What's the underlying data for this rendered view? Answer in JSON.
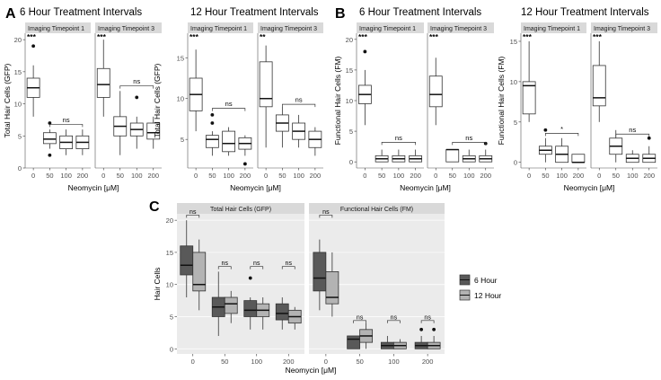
{
  "colors": {
    "strip_bg": "#d9d9d9",
    "box_white": "#ffffff",
    "box_6h": "#595959",
    "box_12h": "#b3b3b3",
    "grid_bg": "#ebebeb",
    "grid_line": "#ffffff",
    "axis_text": "#4d4d4d"
  },
  "panel_letters": [
    "A",
    "B",
    "C"
  ],
  "chart_data": [
    {
      "id": "A1",
      "type": "box",
      "title": "6 Hour Treatment Intervals",
      "xlabel": "Neomycin [μM]",
      "ylabel": "Total Hair Cells (GFP)",
      "ylim": [
        0,
        21
      ],
      "yticks": [
        0,
        5,
        10,
        15,
        20
      ],
      "categories": [
        "0",
        "50",
        "100",
        "200"
      ],
      "facets": [
        {
          "label": "Imaging Timepoint 1",
          "boxes": [
            {
              "min": 8,
              "q1": 11,
              "median": 12.5,
              "q3": 14,
              "max": 16,
              "outliers": [
                19
              ]
            },
            {
              "min": 3,
              "q1": 3.8,
              "median": 4.5,
              "q3": 5.5,
              "max": 6,
              "outliers": [
                7,
                2
              ]
            },
            {
              "min": 2,
              "q1": 3,
              "median": 4,
              "q3": 5,
              "max": 6,
              "outliers": []
            },
            {
              "min": 2,
              "q1": 3,
              "median": 4,
              "q3": 5,
              "max": 6,
              "outliers": []
            }
          ],
          "annotations": [
            {
              "text": "***",
              "cat": 0
            },
            {
              "text": "ns",
              "from": 1,
              "to": 3,
              "y": 6.8
            }
          ]
        },
        {
          "label": "Imaging Timepoint 3",
          "boxes": [
            {
              "min": 8,
              "q1": 11,
              "median": 13,
              "q3": 15.5,
              "max": 20,
              "outliers": []
            },
            {
              "min": 2,
              "q1": 5,
              "median": 6.5,
              "q3": 8,
              "max": 12,
              "outliers": []
            },
            {
              "min": 3,
              "q1": 5,
              "median": 6,
              "q3": 7,
              "max": 8,
              "outliers": [
                11
              ]
            },
            {
              "min": 3,
              "q1": 4.5,
              "median": 5.5,
              "q3": 7,
              "max": 8,
              "outliers": []
            }
          ],
          "annotations": [
            {
              "text": "***",
              "cat": 0
            },
            {
              "text": "ns",
              "from": 1,
              "to": 3,
              "y": 12.8
            }
          ]
        }
      ]
    },
    {
      "id": "A2",
      "type": "box",
      "title": "12 Hour Treatment Intervals",
      "xlabel": "Neomycin [μM]",
      "ylabel": "Total Hair Cells (GFP)",
      "ylim": [
        1.5,
        18
      ],
      "yticks": [
        5,
        10,
        15
      ],
      "categories": [
        "0",
        "50",
        "100",
        "200"
      ],
      "facets": [
        {
          "label": "Imaging Timepoint 1",
          "boxes": [
            {
              "min": 6,
              "q1": 8.5,
              "median": 10.5,
              "q3": 12.5,
              "max": 16,
              "outliers": []
            },
            {
              "min": 3,
              "q1": 4,
              "median": 5,
              "q3": 5.5,
              "max": 6,
              "outliers": [
                7,
                8
              ]
            },
            {
              "min": 3,
              "q1": 3.5,
              "median": 4.5,
              "q3": 6,
              "max": 6.5,
              "outliers": []
            },
            {
              "min": 3,
              "q1": 3.8,
              "median": 4.5,
              "q3": 5.2,
              "max": 5.5,
              "outliers": [
                2
              ]
            }
          ],
          "annotations": [
            {
              "text": "***",
              "cat": 0
            },
            {
              "text": "ns",
              "from": 1,
              "to": 3,
              "y": 8.8
            }
          ]
        },
        {
          "label": "Imaging Timepoint 3",
          "boxes": [
            {
              "min": 4,
              "q1": 9,
              "median": 10,
              "q3": 14.5,
              "max": 16.5,
              "outliers": []
            },
            {
              "min": 4,
              "q1": 6,
              "median": 7,
              "q3": 8,
              "max": 9,
              "outliers": []
            },
            {
              "min": 4,
              "q1": 5,
              "median": 6,
              "q3": 7,
              "max": 8,
              "outliers": []
            },
            {
              "min": 3,
              "q1": 4,
              "median": 5,
              "q3": 6,
              "max": 6.5,
              "outliers": []
            }
          ],
          "annotations": [
            {
              "text": "**",
              "cat": 0
            },
            {
              "text": "ns",
              "from": 1,
              "to": 3,
              "y": 9.3
            }
          ]
        }
      ]
    },
    {
      "id": "B1",
      "type": "box",
      "title": "6 Hour Treatment Intervals",
      "xlabel": "Neomycin [μM]",
      "ylabel": "Functional Hair Cells (FM)",
      "ylim": [
        -1,
        21
      ],
      "yticks": [
        0,
        5,
        10,
        15,
        20
      ],
      "categories": [
        "0",
        "50",
        "100",
        "200"
      ],
      "facets": [
        {
          "label": "Imaging Timepoint 1",
          "boxes": [
            {
              "min": 6,
              "q1": 9.5,
              "median": 11,
              "q3": 12.5,
              "max": 15,
              "outliers": [
                18
              ]
            },
            {
              "min": 0,
              "q1": 0,
              "median": 0.5,
              "q3": 1,
              "max": 2,
              "outliers": []
            },
            {
              "min": 0,
              "q1": 0,
              "median": 0.5,
              "q3": 1,
              "max": 2,
              "outliers": []
            },
            {
              "min": 0,
              "q1": 0,
              "median": 0.5,
              "q3": 1,
              "max": 2,
              "outliers": []
            }
          ],
          "annotations": [
            {
              "text": "***",
              "cat": 0
            },
            {
              "text": "ns",
              "from": 1,
              "to": 3,
              "y": 3.2
            }
          ]
        },
        {
          "label": "Imaging Timepoint 3",
          "boxes": [
            {
              "min": 6,
              "q1": 9,
              "median": 11,
              "q3": 14,
              "max": 17,
              "outliers": []
            },
            {
              "min": 0,
              "q1": 0,
              "median": 2,
              "q3": 2,
              "max": 2,
              "outliers": []
            },
            {
              "min": 0,
              "q1": 0,
              "median": 0.5,
              "q3": 1,
              "max": 2,
              "outliers": []
            },
            {
              "min": 0,
              "q1": 0,
              "median": 0.5,
              "q3": 1,
              "max": 2,
              "outliers": [
                3
              ]
            }
          ],
          "annotations": [
            {
              "text": "***",
              "cat": 0
            },
            {
              "text": "ns",
              "from": 1,
              "to": 3,
              "y": 3.2
            }
          ]
        }
      ]
    },
    {
      "id": "B2",
      "type": "box",
      "title": "12 Hour Treatment Intervals",
      "xlabel": "Neomycin [μM]",
      "ylabel": "Functional Hair Cells (FM)",
      "ylim": [
        -0.7,
        16
      ],
      "yticks": [
        0,
        5,
        10,
        15
      ],
      "categories": [
        "0",
        "50",
        "100",
        "200"
      ],
      "facets": [
        {
          "label": "Imaging Timepoint 1",
          "boxes": [
            {
              "min": 5,
              "q1": 6,
              "median": 9.5,
              "q3": 10,
              "max": 15,
              "outliers": []
            },
            {
              "min": 0,
              "q1": 1,
              "median": 1.5,
              "q3": 2,
              "max": 3,
              "outliers": [
                4
              ]
            },
            {
              "min": 0,
              "q1": 0,
              "median": 1,
              "q3": 2,
              "max": 3,
              "outliers": []
            },
            {
              "min": 0,
              "q1": 0,
              "median": 0,
              "q3": 1,
              "max": 1,
              "outliers": []
            }
          ],
          "annotations": [
            {
              "text": "***",
              "cat": 0
            },
            {
              "text": "*",
              "from": 1,
              "to": 3,
              "y": 3.6
            }
          ]
        },
        {
          "label": "Imaging Timepoint 3",
          "boxes": [
            {
              "min": 5,
              "q1": 7,
              "median": 8,
              "q3": 12,
              "max": 15,
              "outliers": []
            },
            {
              "min": 0,
              "q1": 1,
              "median": 2,
              "q3": 3,
              "max": 4,
              "outliers": []
            },
            {
              "min": 0,
              "q1": 0,
              "median": 0.5,
              "q3": 1,
              "max": 1.5,
              "outliers": []
            },
            {
              "min": 0,
              "q1": 0,
              "median": 0.5,
              "q3": 1,
              "max": 2,
              "outliers": [
                3
              ]
            }
          ],
          "annotations": [
            {
              "text": "***",
              "cat": 0
            },
            {
              "text": "ns",
              "from": 1,
              "to": 3,
              "y": 3.5
            }
          ]
        }
      ]
    },
    {
      "id": "C",
      "type": "box",
      "title": "",
      "xlabel": "Neomycin [μM]",
      "ylabel": "Hair Cells",
      "ylim": [
        -0.8,
        21
      ],
      "yticks": [
        0,
        5,
        10,
        15,
        20
      ],
      "categories": [
        "0",
        "50",
        "100",
        "200"
      ],
      "legend": {
        "position": "right",
        "entries": [
          "6 Hour",
          "12 Hour"
        ]
      },
      "facets": [
        {
          "label": "Total Hair Cells (GFP)",
          "groups": [
            {
              "s6": {
                "min": 8,
                "q1": 11.5,
                "median": 13,
                "q3": 16,
                "max": 20,
                "outliers": []
              },
              "s12": {
                "min": 6,
                "q1": 9,
                "median": 10,
                "q3": 15,
                "max": 17,
                "outliers": []
              }
            },
            {
              "s6": {
                "min": 2,
                "q1": 5,
                "median": 6.5,
                "q3": 8,
                "max": 12,
                "outliers": []
              },
              "s12": {
                "min": 4,
                "q1": 5.5,
                "median": 7,
                "q3": 8,
                "max": 9,
                "outliers": []
              }
            },
            {
              "s6": {
                "min": 3,
                "q1": 5,
                "median": 6,
                "q3": 7.5,
                "max": 8,
                "outliers": [
                  11
                ]
              },
              "s12": {
                "min": 3,
                "q1": 5,
                "median": 6,
                "q3": 7,
                "max": 8,
                "outliers": []
              }
            },
            {
              "s6": {
                "min": 3,
                "q1": 4.5,
                "median": 5.5,
                "q3": 7,
                "max": 8,
                "outliers": []
              },
              "s12": {
                "min": 3,
                "q1": 4,
                "median": 5,
                "q3": 6,
                "max": 6.5,
                "outliers": []
              }
            }
          ],
          "annotations": [
            {
              "text": "ns",
              "cat": 0,
              "y": 20.8
            },
            {
              "text": "ns",
              "cat": 1,
              "y": 12.8
            },
            {
              "text": "ns",
              "cat": 2,
              "y": 12.8
            },
            {
              "text": "ns",
              "cat": 3,
              "y": 12.8
            }
          ]
        },
        {
          "label": "Functional Hair Cells (FM)",
          "groups": [
            {
              "s6": {
                "min": 6,
                "q1": 9,
                "median": 11,
                "q3": 15,
                "max": 17,
                "outliers": []
              },
              "s12": {
                "min": 5,
                "q1": 7,
                "median": 8,
                "q3": 12,
                "max": 15,
                "outliers": []
              }
            },
            {
              "s6": {
                "min": 0,
                "q1": 0,
                "median": 1.5,
                "q3": 2,
                "max": 2,
                "outliers": []
              },
              "s12": {
                "min": 0,
                "q1": 1,
                "median": 2,
                "q3": 3,
                "max": 4,
                "outliers": []
              }
            },
            {
              "s6": {
                "min": 0,
                "q1": 0,
                "median": 0.5,
                "q3": 1,
                "max": 2,
                "outliers": []
              },
              "s12": {
                "min": 0,
                "q1": 0,
                "median": 0.5,
                "q3": 1,
                "max": 1.5,
                "outliers": []
              }
            },
            {
              "s6": {
                "min": 0,
                "q1": 0,
                "median": 0.5,
                "q3": 1,
                "max": 2,
                "outliers": [
                  3
                ]
              },
              "s12": {
                "min": 0,
                "q1": 0,
                "median": 0.5,
                "q3": 1,
                "max": 2,
                "outliers": [
                  3
                ]
              }
            }
          ],
          "annotations": [
            {
              "text": "ns",
              "cat": 0,
              "y": 20.8
            },
            {
              "text": "ns",
              "cat": 1,
              "y": 4.4
            },
            {
              "text": "ns",
              "cat": 2,
              "y": 4.4
            },
            {
              "text": "ns",
              "cat": 3,
              "y": 4.4
            }
          ]
        }
      ]
    }
  ]
}
